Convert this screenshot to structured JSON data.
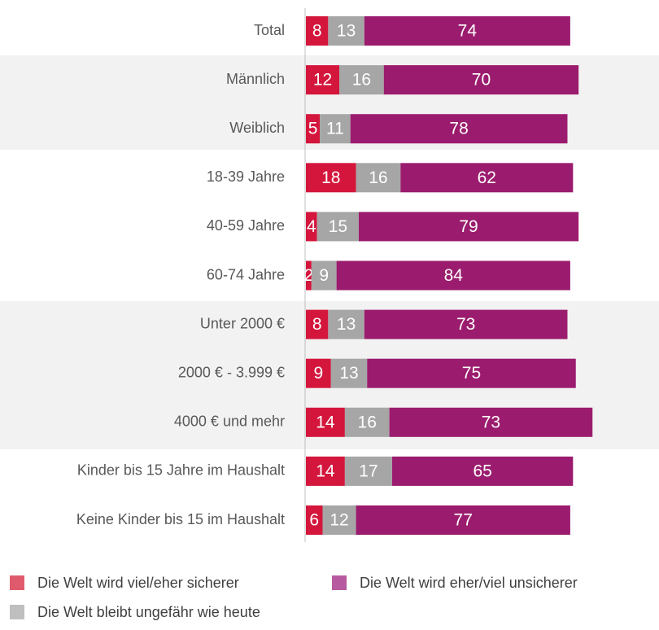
{
  "chart_data": {
    "type": "stacked-bar",
    "categories": [
      "Total",
      "Männlich",
      "Weiblich",
      "18-39 Jahre",
      "40-59 Jahre",
      "60-74 Jahre",
      "Unter 2000 €",
      "2000 € - 3.999 €",
      "4000 € und mehr",
      "Kinder bis 15 Jahre im Haushalt",
      "Keine Kinder bis 15 im Haushalt"
    ],
    "series": [
      {
        "name": "Die Welt wird viel/eher sicherer",
        "color": "#d4163c",
        "values": [
          8,
          12,
          5,
          18,
          4,
          2,
          8,
          9,
          14,
          14,
          6
        ]
      },
      {
        "name": "Die Welt bleibt ungefähr wie heute",
        "color": "#a6a6a6",
        "values": [
          13,
          16,
          11,
          16,
          15,
          9,
          13,
          13,
          16,
          17,
          12
        ]
      },
      {
        "name": "Die Welt wird eher/viel unsicherer",
        "color": "#9b1c6e",
        "values": [
          74,
          70,
          78,
          62,
          79,
          84,
          73,
          75,
          73,
          65,
          77
        ]
      }
    ]
  }
}
